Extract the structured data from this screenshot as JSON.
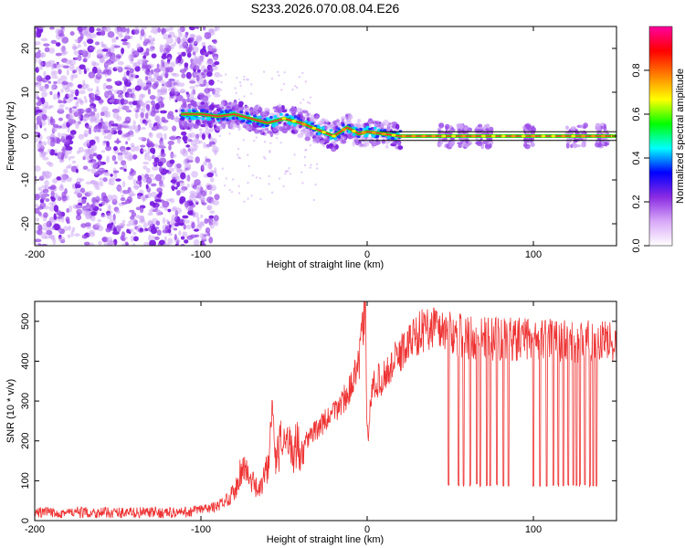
{
  "title": "S233.2026.070.08.04.E26",
  "chart_data": [
    {
      "type": "heatmap",
      "title": "S233.2026.070.08.04.E26",
      "xlabel": "Height of straight line (km)",
      "ylabel": "Frequency (Hz)",
      "xlim": [
        -200,
        150
      ],
      "ylim": [
        -25,
        25
      ],
      "xticks": [
        -200,
        -100,
        0,
        100
      ],
      "yticks": [
        -20,
        -10,
        0,
        10,
        20
      ],
      "colorbar": {
        "label": "Normalized spectral amplitude",
        "range": [
          0,
          1
        ],
        "ticks": [
          "0.0",
          "0.2",
          "0.4",
          "0.6",
          "0.8"
        ],
        "colors": [
          "#ffffff",
          "#d8a8f8",
          "#8a2be2",
          "#0000ff",
          "#00ffff",
          "#00ff00",
          "#ffff00",
          "#ff8000",
          "#ff0000",
          "#ff00a0"
        ]
      },
      "ridge": {
        "x": [
          -112,
          -100,
          -90,
          -80,
          -70,
          -60,
          -50,
          -40,
          -30,
          -20,
          -12,
          -5,
          0,
          10,
          20,
          40,
          60,
          80,
          100,
          120,
          150
        ],
        "y": [
          5,
          5,
          4.5,
          5,
          4,
          3,
          4,
          3,
          1.5,
          0,
          2,
          0.5,
          1,
          0.5,
          0,
          0,
          0,
          0,
          0,
          0,
          0
        ]
      },
      "noise_region_x": [
        -200,
        -90
      ],
      "reference_line_hz": [
        1,
        -1
      ]
    },
    {
      "type": "line",
      "xlabel": "Height of straight line (km)",
      "ylabel": "SNR (10 * v/v)",
      "xlim": [
        -200,
        150
      ],
      "ylim": [
        0,
        550
      ],
      "xticks": [
        -200,
        -100,
        0,
        100
      ],
      "yticks": [
        0,
        100,
        200,
        300,
        400,
        500
      ],
      "color": "#ee3333",
      "envelope": {
        "x": [
          -200,
          -150,
          -110,
          -90,
          -80,
          -75,
          -70,
          -65,
          -60,
          -57,
          -55,
          -50,
          -45,
          -40,
          -30,
          -20,
          -10,
          -5,
          -3,
          -1,
          0,
          3,
          10,
          20,
          30,
          40,
          50,
          60,
          80,
          100,
          120,
          150
        ],
        "y": [
          20,
          20,
          20,
          35,
          70,
          140,
          100,
          70,
          130,
          300,
          150,
          210,
          180,
          190,
          230,
          270,
          330,
          390,
          470,
          540,
          180,
          340,
          360,
          420,
          470,
          490,
          470,
          460,
          455,
          455,
          450,
          450
        ]
      },
      "dropouts_x": [
        49,
        55,
        58,
        62,
        66,
        68,
        72,
        74,
        78,
        82,
        85,
        100,
        104,
        108,
        112,
        115,
        118,
        121,
        124,
        126,
        128,
        131,
        134,
        136,
        138
      ],
      "dropout_level": 85
    }
  ]
}
